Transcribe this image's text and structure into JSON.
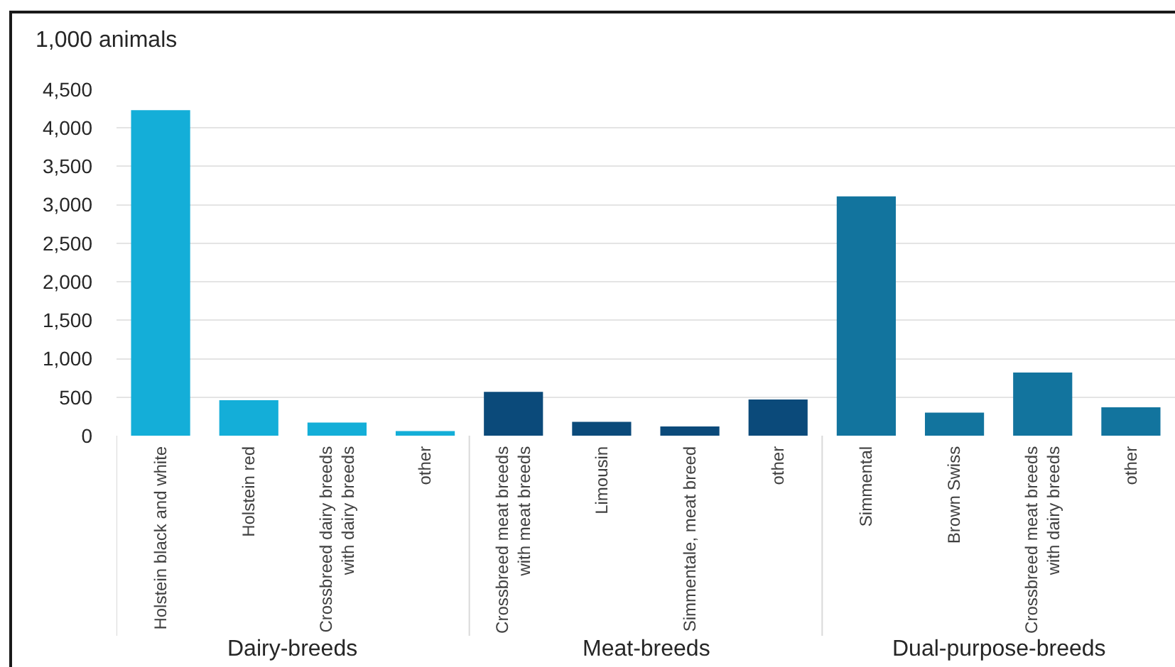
{
  "chart_data": {
    "type": "bar",
    "ylabel": "1,000 animals",
    "categories": [
      "Holstein black and white",
      "Holstein red",
      "Crossbreed dairy breeds with dairy breeds",
      "other",
      "Crossbreed meat breeds with meat breeds",
      "Limousin",
      "Simmentale, meat breed",
      "other",
      "Simmental",
      "Brown Swiss",
      "Crossbreed meat breeds with dairy breeds",
      "other"
    ],
    "values": [
      4230,
      460,
      170,
      60,
      570,
      180,
      120,
      470,
      3110,
      300,
      820,
      370
    ],
    "colors": [
      "#14aed8",
      "#14aed8",
      "#14aed8",
      "#14aed8",
      "#0b4a7a",
      "#0b4a7a",
      "#0b4a7a",
      "#0b4a7a",
      "#12749e",
      "#12749e",
      "#12749e",
      "#12749e"
    ],
    "annotations": [
      "Dairy-breeds",
      "Meat-breeds",
      "Dual-purpose-breeds"
    ],
    "ylim": [
      0,
      4500
    ],
    "yticks": [
      0,
      500,
      {
        "value": 1000,
        "label": "1,000"
      },
      {
        "value": 1500,
        "label": "1,500"
      },
      {
        "value": 2000,
        "label": "2,000"
      },
      {
        "value": 2500,
        "label": "2,500"
      },
      {
        "value": 3000,
        "label": "3,000"
      },
      {
        "value": 3500,
        "label": "3,500"
      },
      {
        "value": 4000,
        "label": "4,000"
      },
      {
        "value": 4500,
        "label": "4,500"
      }
    ],
    "grid": "y"
  }
}
